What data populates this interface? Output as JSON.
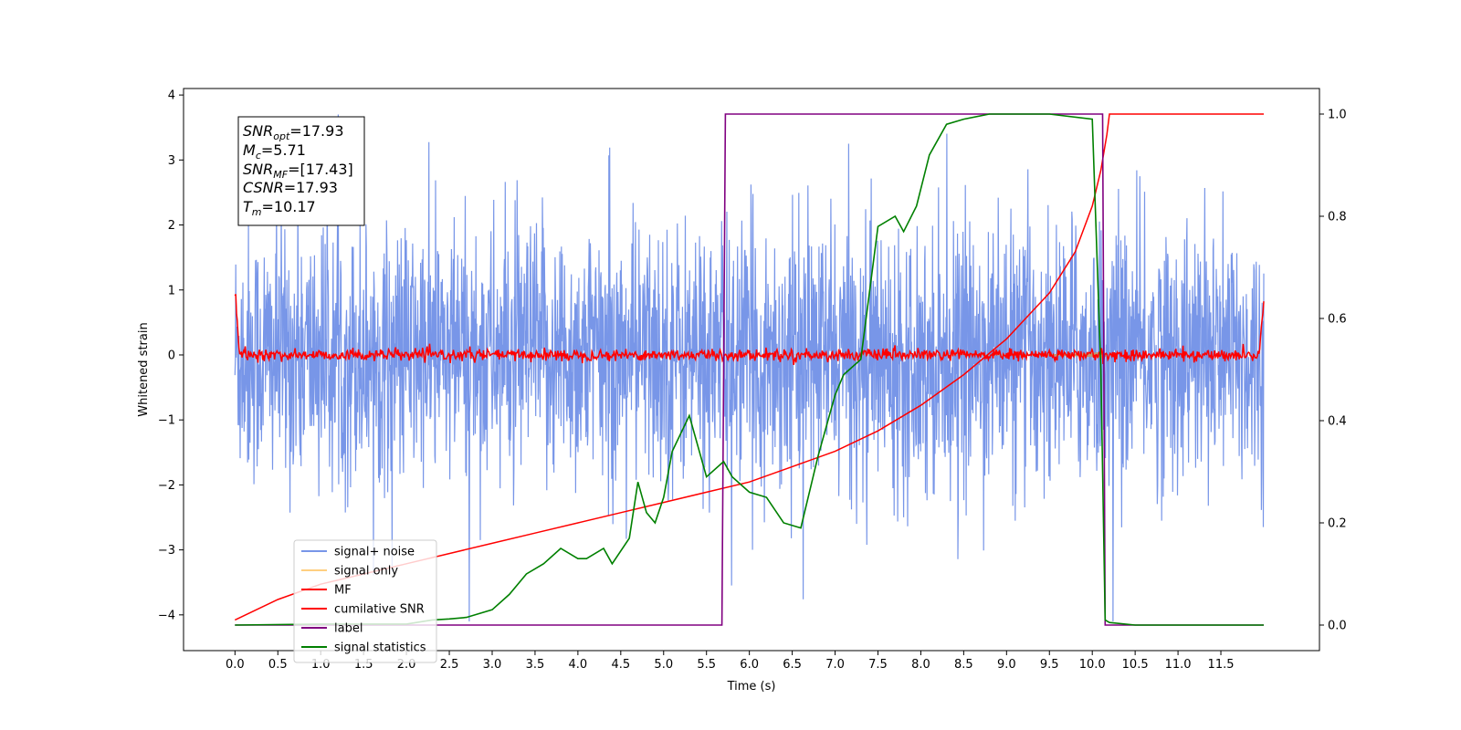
{
  "chart_data": {
    "type": "line",
    "xlabel": "Time (s)",
    "ylabel": "Whitened strain",
    "xlim": [
      -0.6,
      12.65
    ],
    "ylim": [
      -4.55,
      4.1
    ],
    "ylim_right": [
      -0.05,
      1.05
    ],
    "x_ticks": [
      "0.0",
      "0.5",
      "1.0",
      "1.5",
      "2.0",
      "2.5",
      "3.0",
      "3.5",
      "4.0",
      "4.5",
      "5.0",
      "5.5",
      "6.0",
      "6.5",
      "7.0",
      "7.5",
      "8.0",
      "8.5",
      "9.0",
      "9.5",
      "10.0",
      "10.5",
      "11.0",
      "11.5"
    ],
    "y_ticks": [
      "4",
      "3",
      "2",
      "1",
      "0",
      "−1",
      "−2",
      "−3",
      "−4"
    ],
    "y_ticks_right": [
      "0.0",
      "0.2",
      "0.4",
      "0.6",
      "0.8",
      "1.0"
    ],
    "duration": 12.0,
    "merger_time": 10.17,
    "annotation": {
      "snr_opt": {
        "base": "SNR",
        "sub": "opt",
        "value": "=17.93"
      },
      "mc": {
        "base": "M",
        "sub": "c",
        "value": "=5.71"
      },
      "snr_mf": {
        "base": "SNR",
        "sub": "MF",
        "value": "=[17.43]"
      },
      "csnr": {
        "base": "CSNR",
        "sub": "",
        "value": "=17.93"
      },
      "tm": {
        "base": "T",
        "sub": "m",
        "value": "=10.17"
      }
    },
    "legend_position": "lower-left",
    "series": [
      {
        "name": "signal+ noise",
        "color": "#7896e8",
        "axis": "left"
      },
      {
        "name": "signal only",
        "color": "#ffcf80",
        "axis": "left"
      },
      {
        "name": "MF",
        "color": "#ff0000",
        "axis": "left"
      },
      {
        "name": "cumilative SNR",
        "color": "#ff0000",
        "axis": "right",
        "x": [
          0.0,
          0.5,
          1.0,
          1.5,
          2.0,
          2.5,
          3.0,
          3.5,
          4.0,
          4.5,
          5.0,
          5.5,
          6.0,
          6.5,
          7.0,
          7.5,
          8.0,
          8.5,
          9.0,
          9.5,
          9.8,
          10.0,
          10.1,
          10.17,
          10.2,
          12.0
        ],
        "y": [
          0.01,
          0.05,
          0.08,
          0.1,
          0.12,
          0.14,
          0.16,
          0.18,
          0.2,
          0.22,
          0.24,
          0.26,
          0.28,
          0.31,
          0.34,
          0.38,
          0.43,
          0.49,
          0.56,
          0.65,
          0.73,
          0.82,
          0.89,
          0.96,
          1.0,
          1.0
        ]
      },
      {
        "name": "label",
        "color": "#800080",
        "axis": "right",
        "x": [
          0.0,
          5.68,
          5.72,
          10.12,
          10.15,
          12.0
        ],
        "y": [
          0.0,
          0.0,
          1.0,
          1.0,
          0.0,
          0.0
        ]
      },
      {
        "name": "signal statistics",
        "color": "#008000",
        "axis": "right",
        "x": [
          0.0,
          1.0,
          2.0,
          2.3,
          2.5,
          2.7,
          3.0,
          3.2,
          3.4,
          3.6,
          3.8,
          4.0,
          4.1,
          4.3,
          4.4,
          4.6,
          4.7,
          4.8,
          4.9,
          5.0,
          5.1,
          5.3,
          5.5,
          5.7,
          5.8,
          6.0,
          6.2,
          6.4,
          6.6,
          6.8,
          7.0,
          7.1,
          7.3,
          7.4,
          7.5,
          7.7,
          7.8,
          7.95,
          8.1,
          8.3,
          8.5,
          8.8,
          9.0,
          9.5,
          10.0,
          10.1,
          10.15,
          10.2,
          10.5,
          11.0,
          12.0
        ],
        "y": [
          0.0,
          0.002,
          0.002,
          0.01,
          0.012,
          0.015,
          0.03,
          0.06,
          0.1,
          0.12,
          0.15,
          0.13,
          0.13,
          0.15,
          0.12,
          0.17,
          0.28,
          0.22,
          0.2,
          0.25,
          0.34,
          0.41,
          0.29,
          0.32,
          0.29,
          0.26,
          0.25,
          0.2,
          0.19,
          0.33,
          0.45,
          0.49,
          0.52,
          0.65,
          0.78,
          0.8,
          0.77,
          0.82,
          0.92,
          0.98,
          0.99,
          1.0,
          1.0,
          1.0,
          0.99,
          0.5,
          0.01,
          0.005,
          0.0,
          0.0,
          0.0
        ]
      }
    ]
  }
}
